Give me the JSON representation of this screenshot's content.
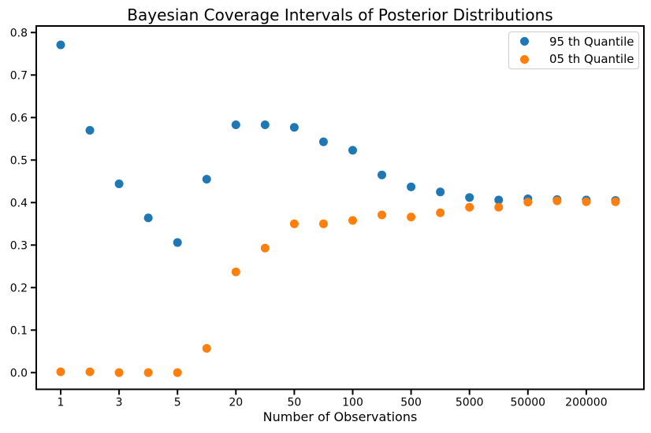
{
  "chart_data": {
    "type": "scatter",
    "title": "Bayesian Coverage Intervals of Posterior Distributions",
    "xlabel": "Number of Observations",
    "ylabel": "",
    "grid": false,
    "legend_position": "upper right",
    "x_tick_labels": [
      "1",
      "3",
      "5",
      "20",
      "50",
      "100",
      "500",
      "5000",
      "50000",
      "200000"
    ],
    "x_tick_indices": [
      0,
      2,
      4,
      6,
      8,
      10,
      12,
      14,
      16,
      18
    ],
    "y_tick_labels": [
      "0.0",
      "0.1",
      "0.2",
      "0.3",
      "0.4",
      "0.5",
      "0.6",
      "0.7",
      "0.8"
    ],
    "n_points": 20,
    "x_values_estimated": [
      1,
      2,
      3,
      4,
      5,
      10,
      20,
      30,
      50,
      75,
      100,
      250,
      500,
      1000,
      5000,
      10000,
      50000,
      100000,
      200000,
      500000
    ],
    "ylim": [
      -0.04,
      0.815
    ],
    "series": [
      {
        "name": "95 th Quantile",
        "color": "#1f77b4",
        "values": [
          0.771,
          0.57,
          0.444,
          0.364,
          0.306,
          0.455,
          0.583,
          0.583,
          0.577,
          0.543,
          0.523,
          0.465,
          0.437,
          0.425,
          0.412,
          0.406,
          0.409,
          0.407,
          0.406,
          0.405
        ]
      },
      {
        "name": "05 th Quantile",
        "color": "#ff7f0e",
        "values": [
          0.002,
          0.002,
          0.0,
          0.0,
          0.0,
          0.057,
          0.237,
          0.293,
          0.35,
          0.35,
          0.358,
          0.371,
          0.366,
          0.376,
          0.389,
          0.389,
          0.401,
          0.404,
          0.402,
          0.402
        ]
      }
    ],
    "colors": {
      "background": "#ffffff",
      "axis": "#000000",
      "legend_border": "#cccccc"
    }
  }
}
